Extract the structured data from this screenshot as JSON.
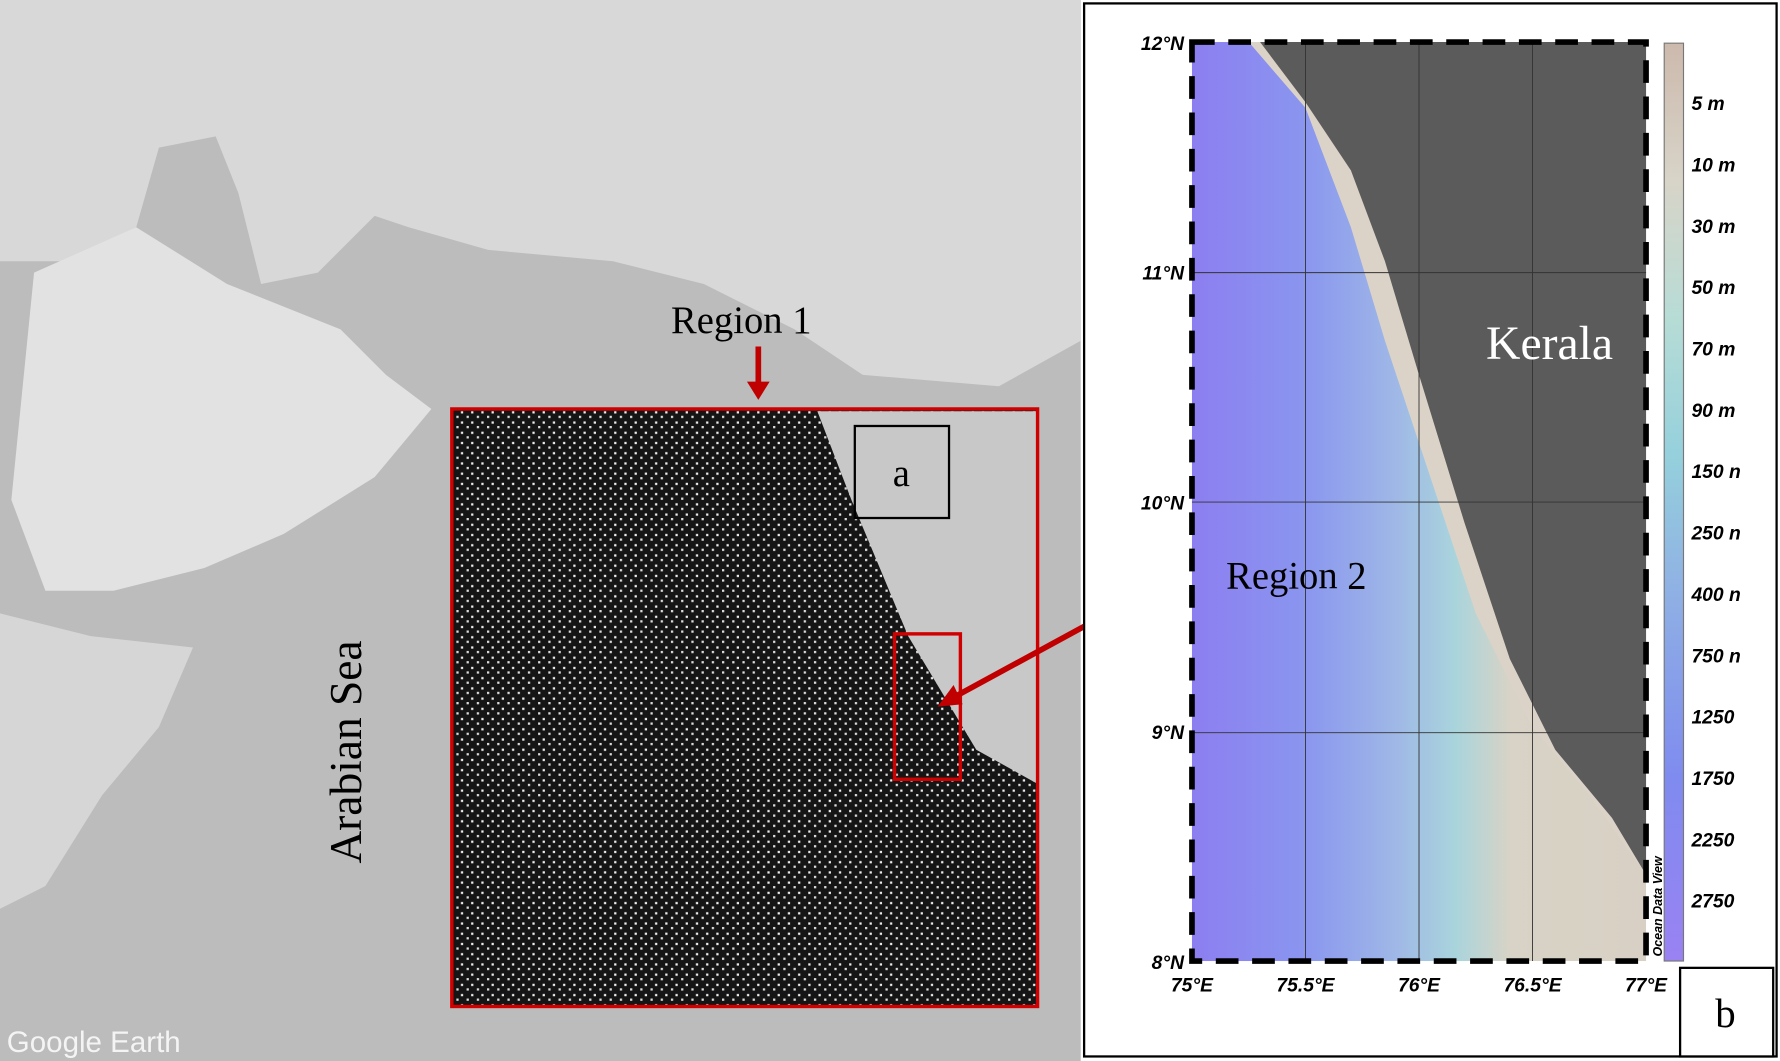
{
  "panel_a": {
    "region_1_label": "Region 1",
    "panel_label": "a",
    "sea_label": "Arabian Sea",
    "watermark": "Google Earth"
  },
  "panel_b": {
    "region_2_label": "Region 2",
    "land_label": "Kerala",
    "panel_label": "b",
    "credit": "Ocean Data View",
    "lat_ticks": [
      "12°N",
      "11°N",
      "10°N",
      "9°N",
      "8°N"
    ],
    "lon_ticks": [
      "75°E",
      "75.5°E",
      "76°E",
      "76.5°E",
      "77°E"
    ],
    "depth_labels": [
      "5 m",
      "10 m",
      "30 m",
      "50 m",
      "70 m",
      "90 m",
      "150 n",
      "250 n",
      "400 n",
      "750 n",
      "1250",
      "1750",
      "2250",
      "2750"
    ]
  }
}
